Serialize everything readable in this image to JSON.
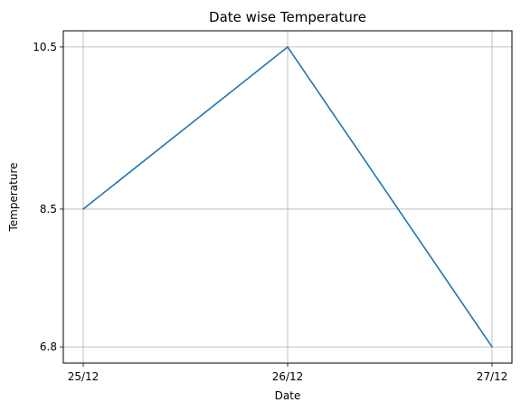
{
  "chart_data": {
    "type": "line",
    "title": "Date wise Temperature",
    "xlabel": "Date",
    "ylabel": "Temperature",
    "categories": [
      "25/12",
      "26/12",
      "27/12"
    ],
    "series": [
      {
        "values": [
          8.5,
          10.5,
          6.8
        ],
        "color": "#1f77b4"
      }
    ],
    "yticks": [
      6.8,
      8.5,
      10.5
    ],
    "ylim": [
      6.6,
      10.7
    ],
    "grid": true,
    "legend": "none"
  }
}
